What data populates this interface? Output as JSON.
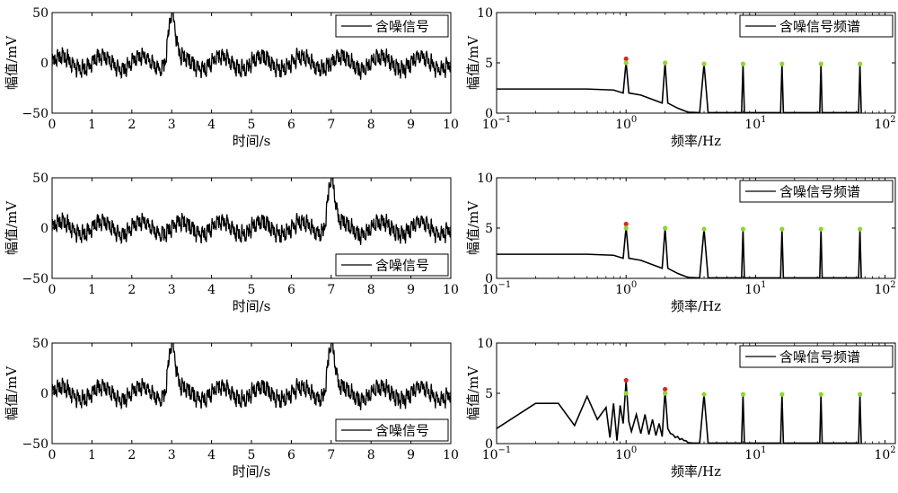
{
  "chart_data": [
    {
      "type": "line",
      "xlabel": "时间/s",
      "ylabel": "幅值/mV",
      "xlim": [
        0,
        10
      ],
      "ylim": [
        -50,
        50
      ],
      "xticks": [
        "0",
        "1",
        "2",
        "3",
        "4",
        "5",
        "6",
        "7",
        "8",
        "9",
        "10"
      ],
      "yticks": [
        "−50",
        "0",
        "50"
      ],
      "legend": "top-right",
      "series": [
        {
          "name": "含噪信号",
          "base_amplitude_mV": 12,
          "base_period_s": 1,
          "pulses": [
            {
              "center_s": 3,
              "peak_mV": 50,
              "width_s": 0.12
            }
          ]
        }
      ]
    },
    {
      "type": "line",
      "xscale": "log",
      "xlabel": "频率/Hz",
      "ylabel": "幅值/mV",
      "xlim": [
        0.1,
        120
      ],
      "ylim": [
        0,
        10
      ],
      "xticks": [
        "10−1",
        "100",
        "101",
        "102"
      ],
      "yticks": [
        "0",
        "5",
        "10"
      ],
      "legend": "top-right",
      "series": [
        {
          "name": "含噪信号频谱",
          "x": [
            0.1,
            0.5,
            0.8,
            0.95,
            1.0,
            1.05,
            1.3,
            1.9,
            2.0,
            2.1,
            2.5,
            3.0,
            3.7,
            4.0,
            4.3,
            7.8,
            8.0,
            8.2,
            15.6,
            16.0,
            16.4,
            31.3,
            32.0,
            32.7,
            62.5,
            64.0,
            65.5
          ],
          "y": [
            2.4,
            2.4,
            2.3,
            2.0,
            5.1,
            2.0,
            1.8,
            1.0,
            5.0,
            1.0,
            0.5,
            0.1,
            0.05,
            4.9,
            0.05,
            0.05,
            4.9,
            0.05,
            0.05,
            4.9,
            0.05,
            0.05,
            4.9,
            0.05,
            0.05,
            4.9,
            0.05
          ]
        }
      ],
      "markers_red": [
        {
          "x": 1,
          "y": 5.4
        }
      ],
      "markers_green": [
        {
          "x": 1,
          "y": 5.0
        },
        {
          "x": 2,
          "y": 5.0
        },
        {
          "x": 4,
          "y": 4.9
        },
        {
          "x": 8,
          "y": 4.9
        },
        {
          "x": 16,
          "y": 4.9
        },
        {
          "x": 32,
          "y": 4.9
        },
        {
          "x": 64,
          "y": 4.9
        }
      ]
    },
    {
      "type": "line",
      "xlabel": "时间/s",
      "ylabel": "幅值/mV",
      "xlim": [
        0,
        10
      ],
      "ylim": [
        -50,
        50
      ],
      "xticks": [
        "0",
        "1",
        "2",
        "3",
        "4",
        "5",
        "6",
        "7",
        "8",
        "9",
        "10"
      ],
      "yticks": [
        "−50",
        "0",
        "50"
      ],
      "legend": "bottom-right",
      "series": [
        {
          "name": "含噪信号",
          "base_amplitude_mV": 12,
          "base_period_s": 1,
          "pulses": [
            {
              "center_s": 7,
              "peak_mV": 50,
              "width_s": 0.12
            }
          ]
        }
      ]
    },
    {
      "type": "line",
      "xscale": "log",
      "xlabel": "频率/Hz",
      "ylabel": "幅值/mV",
      "xlim": [
        0.1,
        120
      ],
      "ylim": [
        0,
        10
      ],
      "xticks": [
        "10−1",
        "100",
        "101",
        "102"
      ],
      "yticks": [
        "0",
        "5",
        "10"
      ],
      "legend": "top-right",
      "series": [
        {
          "name": "含噪信号频谱",
          "x": [
            0.1,
            0.5,
            0.8,
            0.95,
            1.0,
            1.05,
            1.3,
            1.9,
            2.0,
            2.1,
            2.5,
            3.0,
            3.7,
            4.0,
            4.3,
            7.8,
            8.0,
            8.2,
            15.6,
            16.0,
            16.4,
            31.3,
            32.0,
            32.7,
            62.5,
            64.0,
            65.5
          ],
          "y": [
            2.4,
            2.4,
            2.3,
            2.0,
            5.1,
            2.0,
            1.8,
            1.0,
            5.0,
            1.0,
            0.5,
            0.1,
            0.05,
            4.9,
            0.05,
            0.05,
            4.9,
            0.05,
            0.05,
            4.9,
            0.05,
            0.05,
            4.9,
            0.05,
            0.05,
            4.9,
            0.05
          ]
        }
      ],
      "markers_red": [
        {
          "x": 1,
          "y": 5.4
        }
      ],
      "markers_green": [
        {
          "x": 1,
          "y": 5.0
        },
        {
          "x": 2,
          "y": 5.0
        },
        {
          "x": 4,
          "y": 4.9
        },
        {
          "x": 8,
          "y": 4.9
        },
        {
          "x": 16,
          "y": 4.9
        },
        {
          "x": 32,
          "y": 4.9
        },
        {
          "x": 64,
          "y": 4.9
        }
      ]
    },
    {
      "type": "line",
      "xlabel": "时间/s",
      "ylabel": "幅值/mV",
      "xlim": [
        0,
        10
      ],
      "ylim": [
        -50,
        50
      ],
      "xticks": [
        "0",
        "1",
        "2",
        "3",
        "4",
        "5",
        "6",
        "7",
        "8",
        "9",
        "10"
      ],
      "yticks": [
        "−50",
        "0",
        "50"
      ],
      "legend": "bottom-right",
      "series": [
        {
          "name": "含噪信号",
          "base_amplitude_mV": 12,
          "base_period_s": 1,
          "pulses": [
            {
              "center_s": 3,
              "peak_mV": 50,
              "width_s": 0.12
            },
            {
              "center_s": 7,
              "peak_mV": 50,
              "width_s": 0.12
            }
          ]
        }
      ]
    },
    {
      "type": "line",
      "xscale": "log",
      "xlabel": "频率/Hz",
      "ylabel": "幅值/mV",
      "xlim": [
        0.1,
        120
      ],
      "ylim": [
        0,
        10
      ],
      "xticks": [
        "10−1",
        "100",
        "101",
        "102"
      ],
      "yticks": [
        "0",
        "5",
        "10"
      ],
      "legend": "top-right",
      "series": [
        {
          "name": "含噪信号频谱",
          "x": [
            0.1,
            0.2,
            0.3,
            0.4,
            0.5,
            0.6,
            0.7,
            0.75,
            0.8,
            0.85,
            0.9,
            0.95,
            1.0,
            1.05,
            1.1,
            1.2,
            1.3,
            1.4,
            1.5,
            1.6,
            1.7,
            1.8,
            1.9,
            2.0,
            2.1,
            2.2,
            2.3,
            2.4,
            2.5,
            2.6,
            2.7,
            2.8,
            2.9,
            3.0,
            3.3,
            3.7,
            4.0,
            4.3,
            7.8,
            8.0,
            8.2,
            15.6,
            16.0,
            16.4,
            31.3,
            32.0,
            32.7,
            62.5,
            64.0,
            65.5
          ],
          "y": [
            1.5,
            4.0,
            4.0,
            1.8,
            4.7,
            2.4,
            3.6,
            0.6,
            4.0,
            0.3,
            3.8,
            2.0,
            6.2,
            2.2,
            1.2,
            2.9,
            1.0,
            2.9,
            0.9,
            2.4,
            0.8,
            2.0,
            0.7,
            5.3,
            1.5,
            1.0,
            0.9,
            0.6,
            0.7,
            0.4,
            0.5,
            0.3,
            0.3,
            0.1,
            0.05,
            0.05,
            4.9,
            0.05,
            0.05,
            4.9,
            0.05,
            0.05,
            4.9,
            0.05,
            0.05,
            4.9,
            0.05,
            0.05,
            4.9,
            0.05
          ]
        }
      ],
      "markers_red": [
        {
          "x": 1,
          "y": 6.3
        },
        {
          "x": 2,
          "y": 5.4
        }
      ],
      "markers_green": [
        {
          "x": 1,
          "y": 5.0
        },
        {
          "x": 2,
          "y": 5.0
        },
        {
          "x": 4,
          "y": 4.9
        },
        {
          "x": 8,
          "y": 4.9
        },
        {
          "x": 16,
          "y": 4.9
        },
        {
          "x": 32,
          "y": 4.9
        },
        {
          "x": 64,
          "y": 4.9
        }
      ]
    }
  ],
  "colors": {
    "line": "#000000",
    "marker_red": "#d62728",
    "marker_green": "#8fd631"
  }
}
